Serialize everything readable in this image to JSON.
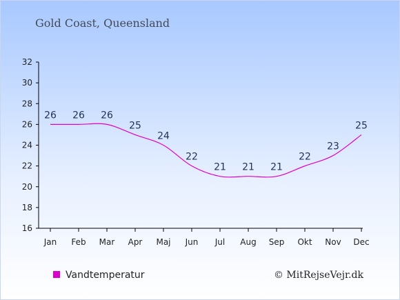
{
  "chart_data": {
    "type": "line",
    "title": "Gold Coast, Queensland",
    "categories": [
      "Jan",
      "Feb",
      "Mar",
      "Apr",
      "Maj",
      "Jun",
      "Jul",
      "Aug",
      "Sep",
      "Okt",
      "Nov",
      "Dec"
    ],
    "series": [
      {
        "name": "Vandtemperatur",
        "values": [
          26,
          26,
          26,
          25,
          24,
          22,
          21,
          21,
          21,
          22,
          23,
          25
        ],
        "color": "#dd00cc"
      }
    ],
    "ylim": [
      16,
      32
    ],
    "yticks": [
      16,
      18,
      20,
      22,
      24,
      26,
      28,
      30,
      32
    ],
    "grid": false,
    "legend": "bottom-left"
  },
  "copyright": "© MitRejseVejr.dk"
}
